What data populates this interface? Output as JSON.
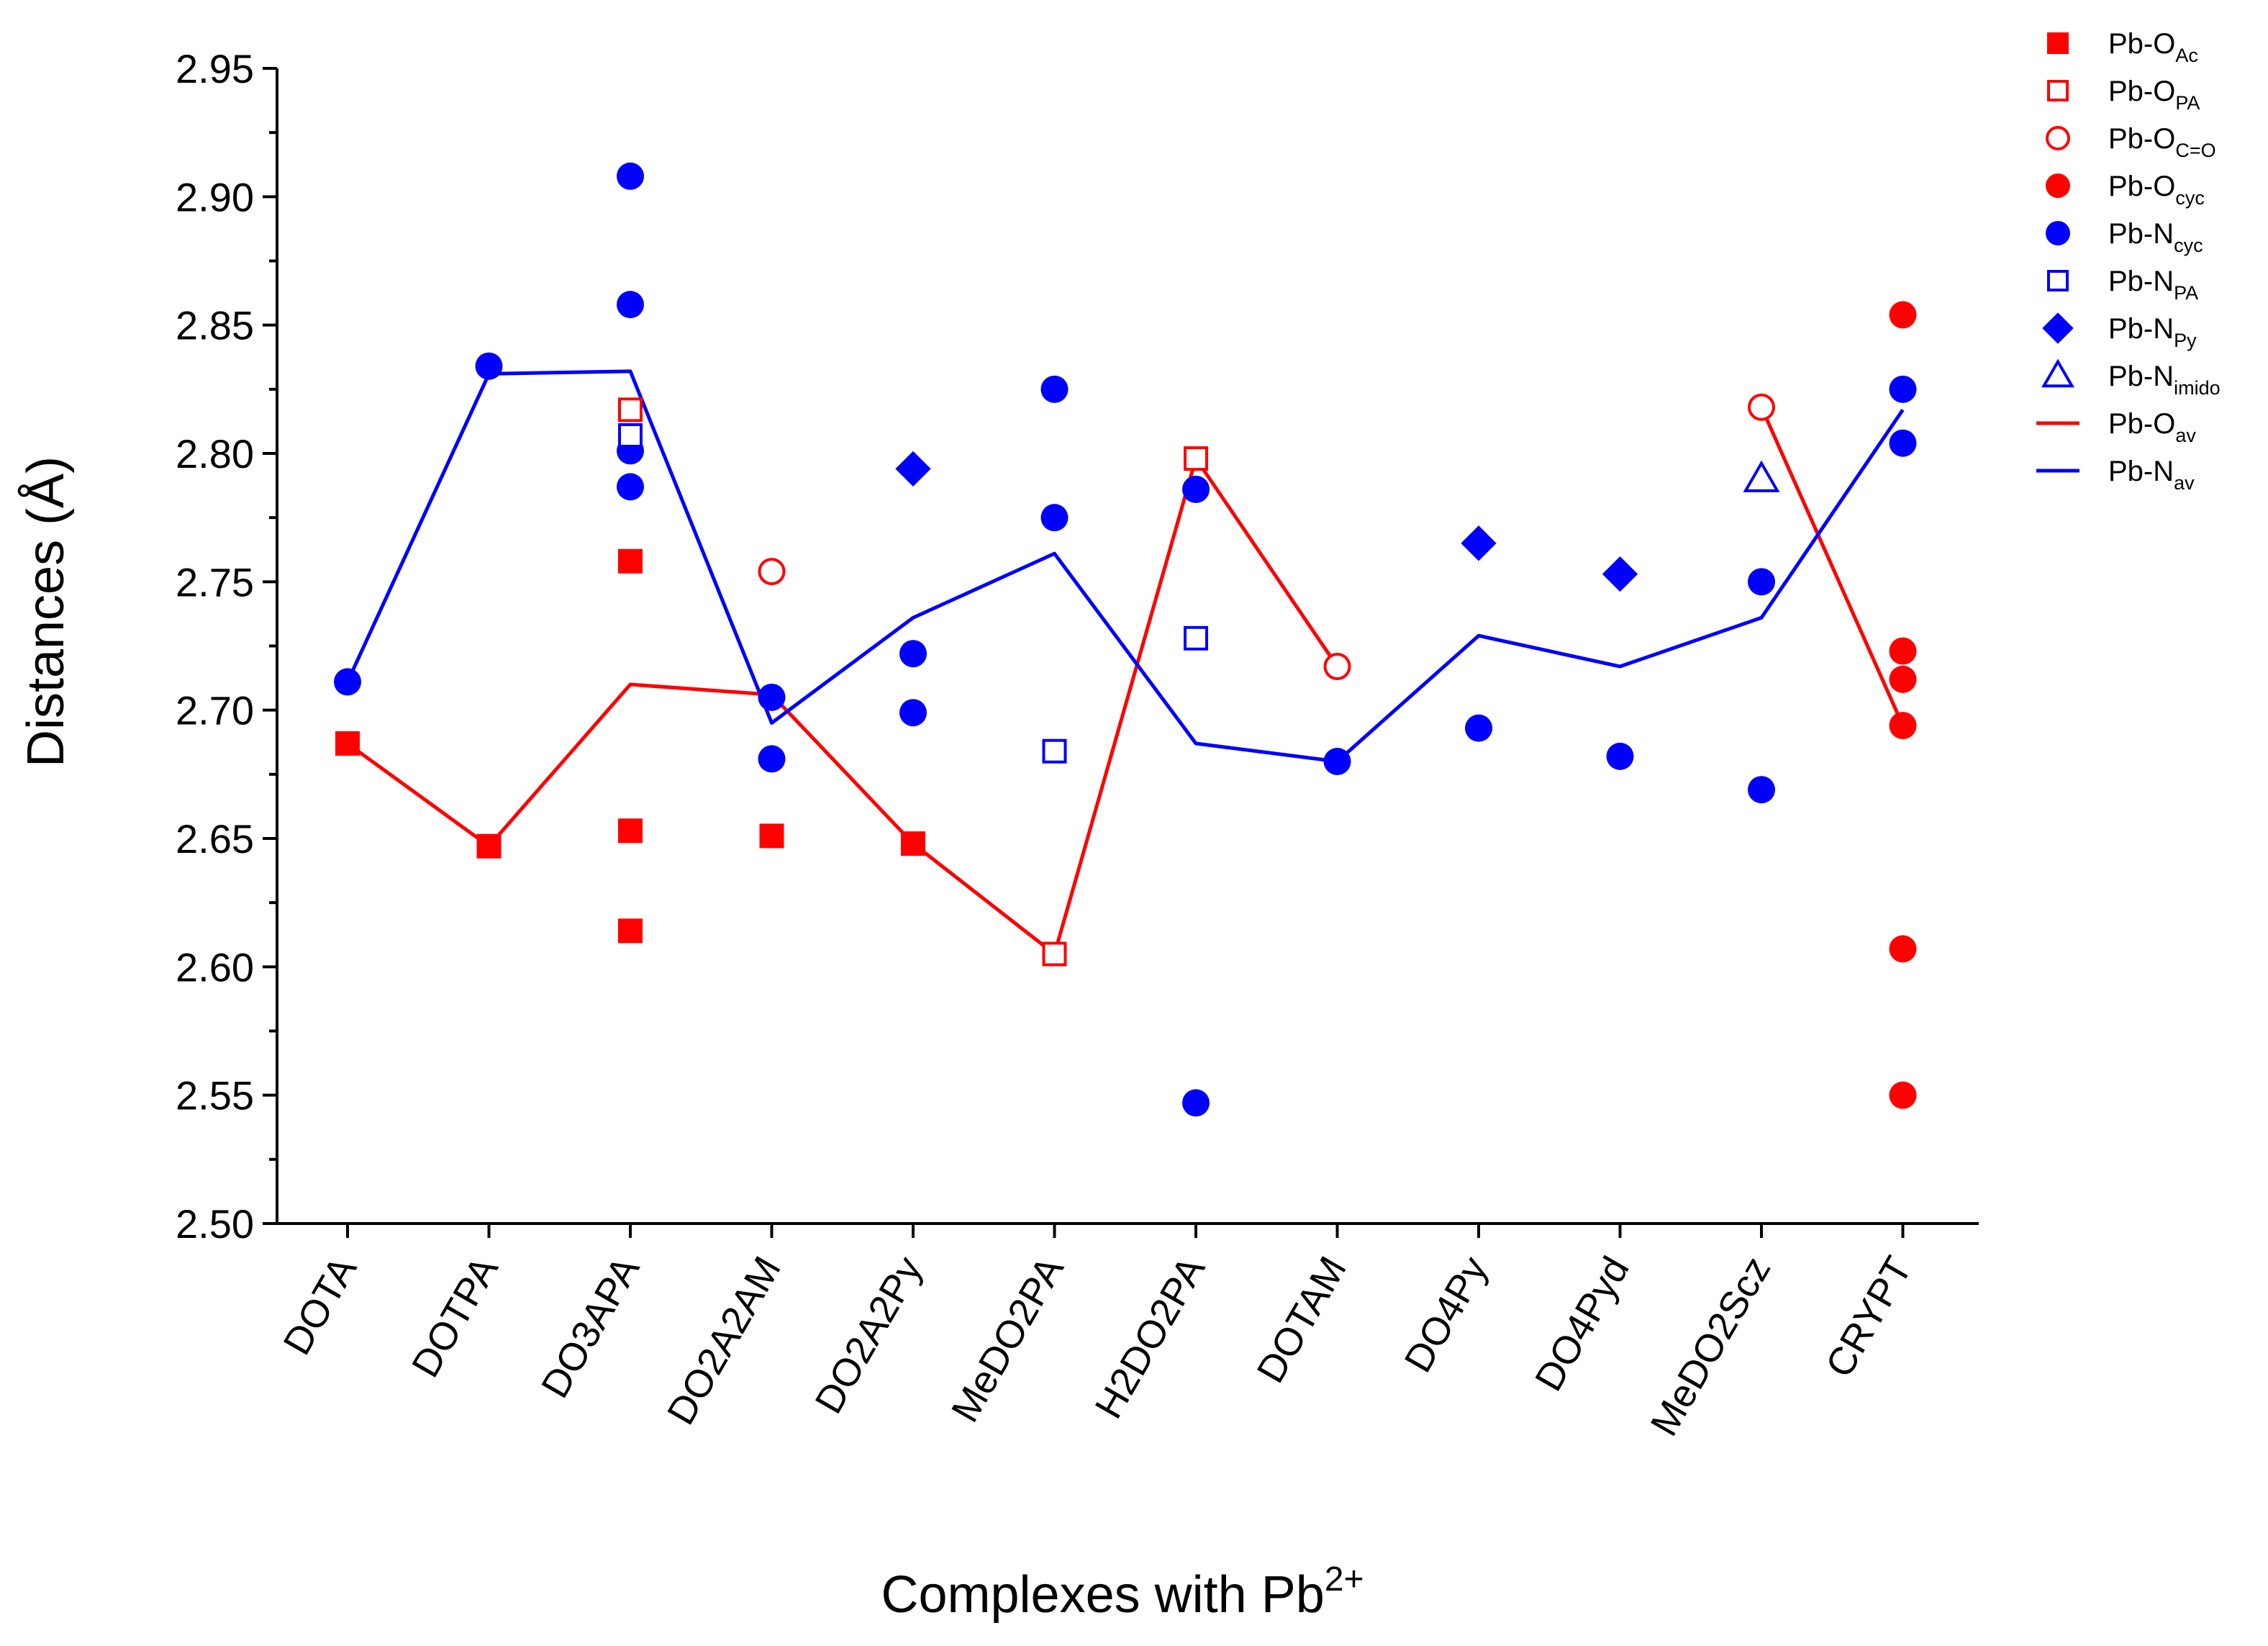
{
  "chart_data": {
    "type": "scatter",
    "title": "",
    "xlabel": "Complexes with Pb",
    "xlabel_sup": "2+",
    "ylabel": "Distances  (Å)",
    "categories": [
      "DOTA",
      "DOTPA",
      "DO3APA",
      "DO2A2AM",
      "DO2A2Py",
      "MeDO2PA",
      "H2DO2PA",
      "DOTAM",
      "DO4Py",
      "DO4Pyd",
      "MeDO2Scz",
      "CRYPT"
    ],
    "ylim": [
      2.5,
      2.95
    ],
    "yticks": [
      "2.50",
      "2.55",
      "2.60",
      "2.65",
      "2.70",
      "2.75",
      "2.80",
      "2.85",
      "2.90",
      "2.95"
    ],
    "grid": false,
    "legend_position": "top-right outside",
    "colors": {
      "red": "#ff0000",
      "blue": "#0000ff"
    },
    "series": [
      {
        "name": "Pb-O",
        "sub": "Ac",
        "marker": "filled-square",
        "color": "red",
        "points": [
          [
            "DOTA",
            2.687
          ],
          [
            "DOTPA",
            2.647
          ],
          [
            "DO3APA",
            2.758
          ],
          [
            "DO3APA",
            2.653
          ],
          [
            "DO3APA",
            2.614
          ],
          [
            "DO2A2AM",
            2.651
          ],
          [
            "DO2A2Py",
            2.648
          ]
        ]
      },
      {
        "name": "Pb-O",
        "sub": "PA",
        "marker": "open-square",
        "color": "red",
        "points": [
          [
            "DO3APA",
            2.817
          ],
          [
            "MeDO2PA",
            2.605
          ],
          [
            "H2DO2PA",
            2.798
          ]
        ]
      },
      {
        "name": "Pb-O",
        "sub": "C=O",
        "marker": "open-circle",
        "color": "red",
        "points": [
          [
            "DO2A2AM",
            2.754
          ],
          [
            "DOTAM",
            2.717
          ],
          [
            "MeDO2Scz",
            2.818
          ]
        ]
      },
      {
        "name": "Pb-O",
        "sub": "cyc",
        "marker": "filled-circle",
        "color": "red",
        "points": [
          [
            "CRYPT",
            2.854
          ],
          [
            "CRYPT",
            2.723
          ],
          [
            "CRYPT",
            2.712
          ],
          [
            "CRYPT",
            2.694
          ],
          [
            "CRYPT",
            2.607
          ],
          [
            "CRYPT",
            2.55
          ]
        ]
      },
      {
        "name": "Pb-N",
        "sub": "cyc",
        "marker": "filled-circle",
        "color": "blue",
        "points": [
          [
            "DOTA",
            2.711
          ],
          [
            "DOTPA",
            2.834
          ],
          [
            "DO3APA",
            2.908
          ],
          [
            "DO3APA",
            2.858
          ],
          [
            "DO3APA",
            2.801
          ],
          [
            "DO3APA",
            2.787
          ],
          [
            "DO2A2AM",
            2.705
          ],
          [
            "DO2A2AM",
            2.681
          ],
          [
            "DO2A2Py",
            2.722
          ],
          [
            "DO2A2Py",
            2.699
          ],
          [
            "MeDO2PA",
            2.825
          ],
          [
            "MeDO2PA",
            2.775
          ],
          [
            "H2DO2PA",
            2.786
          ],
          [
            "H2DO2PA",
            2.547
          ],
          [
            "DOTAM",
            2.68
          ],
          [
            "DO4Py",
            2.693
          ],
          [
            "DO4Pyd",
            2.682
          ],
          [
            "MeDO2Scz",
            2.75
          ],
          [
            "MeDO2Scz",
            2.669
          ],
          [
            "CRYPT",
            2.825
          ],
          [
            "CRYPT",
            2.804
          ]
        ]
      },
      {
        "name": "Pb-N",
        "sub": "PA",
        "marker": "open-square",
        "color": "blue",
        "points": [
          [
            "DO3APA",
            2.807
          ],
          [
            "MeDO2PA",
            2.684
          ],
          [
            "H2DO2PA",
            2.728
          ]
        ]
      },
      {
        "name": "Pb-N",
        "sub": "Py",
        "marker": "filled-diamond",
        "color": "blue",
        "points": [
          [
            "DO2A2Py",
            2.794
          ],
          [
            "DO4Py",
            2.765
          ],
          [
            "DO4Pyd",
            2.753
          ]
        ]
      },
      {
        "name": "Pb-N",
        "sub": "imido",
        "marker": "open-triangle",
        "color": "blue",
        "points": [
          [
            "MeDO2Scz",
            2.79
          ]
        ]
      },
      {
        "name": "Pb-O",
        "sub": "av",
        "marker": "line",
        "color": "red",
        "points": [
          [
            "DOTA",
            2.687
          ],
          [
            "DOTPA",
            2.647
          ],
          [
            "DO3APA",
            2.71
          ],
          [
            "DO2A2AM",
            2.706
          ],
          [
            "DO2A2Py",
            2.648
          ],
          [
            "MeDO2PA",
            2.605
          ],
          [
            "H2DO2PA",
            2.798
          ],
          [
            "DOTAM",
            2.717
          ],
          null,
          [
            "MeDO2Scz",
            2.818
          ],
          [
            "CRYPT",
            2.694
          ]
        ]
      },
      {
        "name": "Pb-N",
        "sub": "av",
        "marker": "line",
        "color": "blue",
        "points": [
          [
            "DOTA",
            2.711
          ],
          [
            "DOTPA",
            2.831
          ],
          [
            "DO3APA",
            2.832
          ],
          [
            "DO2A2AM",
            2.695
          ],
          [
            "DO2A2Py",
            2.736
          ],
          [
            "MeDO2PA",
            2.761
          ],
          [
            "H2DO2PA",
            2.687
          ],
          [
            "DOTAM",
            2.68
          ],
          [
            "DO4Py",
            2.729
          ],
          [
            "DO4Pyd",
            2.717
          ],
          [
            "MeDO2Scz",
            2.736
          ],
          [
            "CRYPT",
            2.817
          ]
        ]
      }
    ]
  }
}
